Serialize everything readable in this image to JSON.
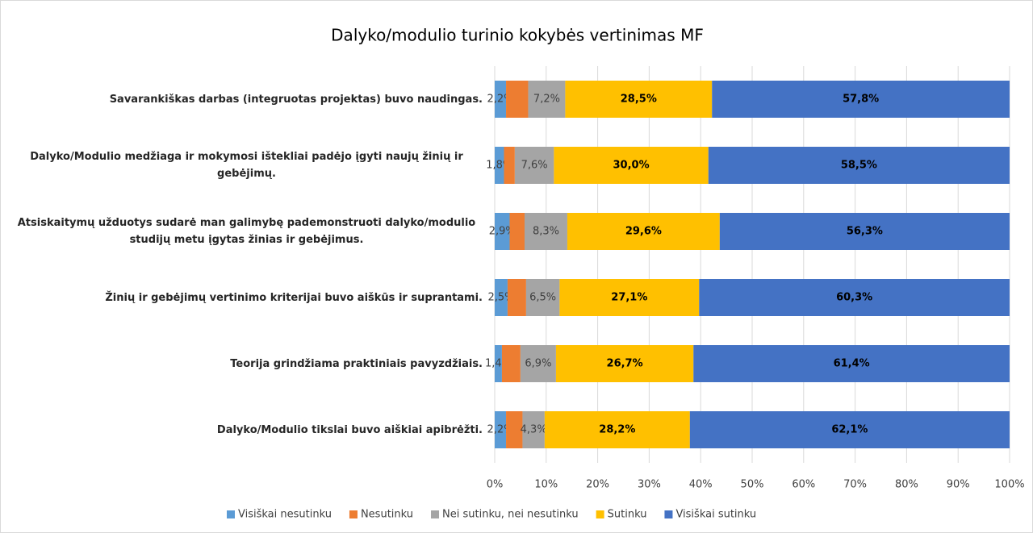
{
  "chart_data": {
    "type": "stacked-bar-horizontal",
    "title": "Dalyko/modulio turinio kokybės vertinimas MF",
    "categories": [
      "Savarankiškas darbas (integruotas projektas) buvo naudingas.",
      "Dalyko/Modulio medžiaga ir mokymosi ištekliai padėjo įgyti naujų žinių ir gebėjimų.",
      "Atsiskaitymų  užduotys sudarė man galimybę pademonstruoti dalyko/modulio studijų metu įgytas žinias ir gebėjimus.",
      "Žinių ir gebėjimų vertinimo kriterijai buvo aiškūs ir suprantami.",
      "Teorija grindžiama praktiniais pavyzdžiais.",
      "Dalyko/Modulio tikslai buvo aiškiai apibrėžti."
    ],
    "series": [
      {
        "name": "Visiškai nesutinku",
        "color": "#5b9bd5",
        "values": [
          2.2,
          1.8,
          2.9,
          2.5,
          1.4,
          2.2
        ],
        "value_labels": [
          "2,2%",
          "1,8%",
          "2,9%",
          "2,5%",
          "1,4%",
          "2,2%"
        ]
      },
      {
        "name": "Nesutinku",
        "color": "#ed7d31",
        "values": [
          4.3,
          2.1,
          2.9,
          3.6,
          3.6,
          3.2
        ]
      },
      {
        "name": "Nei sutinku, nei nesutinku",
        "color": "#a5a5a5",
        "values": [
          7.2,
          7.6,
          8.3,
          6.5,
          6.9,
          4.3
        ],
        "value_labels": [
          "7,2%",
          "7,6%",
          "8,3%",
          "6,5%",
          "6,9%",
          "4,3%"
        ]
      },
      {
        "name": "Sutinku",
        "color": "#ffc000",
        "values": [
          28.5,
          30.0,
          29.6,
          27.1,
          26.7,
          28.2
        ],
        "value_labels": [
          "28,5%",
          "30,0%",
          "29,6%",
          "27,1%",
          "26,7%",
          "28,2%"
        ]
      },
      {
        "name": "Visiškai sutinku",
        "color": "#4472c4",
        "values": [
          57.8,
          58.5,
          56.3,
          60.3,
          61.4,
          62.1
        ],
        "value_labels": [
          "57,8%",
          "58,5%",
          "56,3%",
          "60,3%",
          "61,4%",
          "62,1%"
        ]
      }
    ],
    "xlim": [
      0,
      100
    ],
    "xticks": [
      {
        "value": 0,
        "label": "0%"
      },
      {
        "value": 10,
        "label": "10%"
      },
      {
        "value": 20,
        "label": "20%"
      },
      {
        "value": 30,
        "label": "30%"
      },
      {
        "value": 40,
        "label": "40%"
      },
      {
        "value": 50,
        "label": "50%"
      },
      {
        "value": 60,
        "label": "60%"
      },
      {
        "value": 70,
        "label": "70%"
      },
      {
        "value": 80,
        "label": "80%"
      },
      {
        "value": 90,
        "label": "90%"
      },
      {
        "value": 100,
        "label": "100%"
      }
    ],
    "grid": true,
    "legend": "bottom"
  }
}
